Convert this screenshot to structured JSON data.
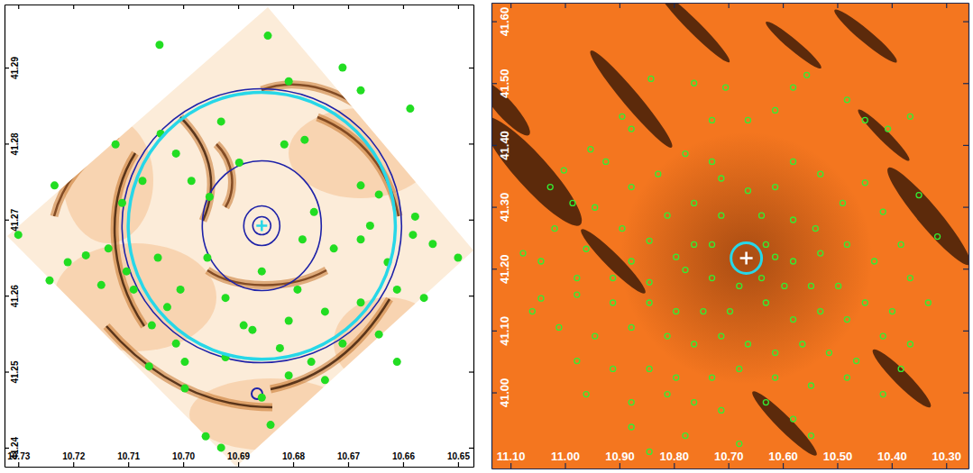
{
  "chart_data": [
    {
      "type": "scatter",
      "marker": "filled-circle",
      "color": "#22dd22",
      "xlim": [
        10.7325,
        10.6472
      ],
      "ylim": [
        41.2375,
        41.2983
      ],
      "xticks": [
        10.73,
        10.72,
        10.71,
        {
          "value": 10.7,
          "label": "10.70"
        },
        10.69,
        10.68,
        10.67,
        10.66,
        10.65
      ],
      "yticks": [
        41.24,
        41.25,
        41.26,
        41.27,
        41.28,
        41.29
      ],
      "x": [
        10.7043,
        10.6846,
        10.6808,
        10.671,
        10.6677,
        10.6587,
        10.7041,
        10.7013,
        10.6931,
        10.6816,
        10.6779,
        10.7123,
        10.7234,
        10.7111,
        10.7074,
        10.6985,
        10.6952,
        10.6898,
        10.6762,
        10.6677,
        10.6644,
        10.6578,
        10.6582,
        10.6546,
        10.73,
        10.7177,
        10.7136,
        10.7103,
        10.7046,
        10.6956,
        10.6857,
        10.6783,
        10.6726,
        10.6677,
        10.6628,
        10.65,
        10.7149,
        10.709,
        10.7005,
        10.6923,
        10.6808,
        10.6874,
        10.6742,
        10.6677,
        10.6611,
        10.6562,
        10.7057,
        10.7013,
        10.6923,
        10.6824,
        10.6767,
        10.671,
        10.6644,
        10.6611,
        10.7062,
        10.6997,
        10.6808,
        10.6742,
        10.6997,
        10.6857,
        10.6841,
        10.6931,
        10.6959,
        10.689,
        10.7029,
        10.6792,
        10.666,
        10.7243,
        10.721
      ],
      "values": [
        41.293,
        41.2942,
        41.2882,
        41.29,
        41.287,
        41.2846,
        41.2813,
        41.2787,
        41.2829,
        41.2799,
        41.2805,
        41.2799,
        41.2745,
        41.2722,
        41.2751,
        41.2751,
        41.273,
        41.2775,
        41.271,
        41.2745,
        41.2733,
        41.2704,
        41.268,
        41.2668,
        41.268,
        41.2653,
        41.2662,
        41.2632,
        41.265,
        41.265,
        41.2632,
        41.2674,
        41.2662,
        41.2674,
        41.2644,
        41.265,
        41.2614,
        41.2608,
        41.2608,
        41.2597,
        41.2567,
        41.2555,
        41.2579,
        41.2591,
        41.2608,
        41.2597,
        41.2561,
        41.2537,
        41.2519,
        41.2531,
        41.2513,
        41.2537,
        41.2549,
        41.2513,
        41.2507,
        41.2513,
        41.2495,
        41.2489,
        41.2478,
        41.2466,
        41.243,
        41.24,
        41.2415,
        41.2561,
        41.2585,
        41.2608,
        41.2692,
        41.262,
        41.2644
      ],
      "circle": {
        "x": 10.6857,
        "y": 41.2692,
        "radius": 0.0243
      }
    },
    {
      "type": "scatter",
      "marker": "open-circle",
      "color": "#33ee33",
      "xlim": [
        11.135,
        10.259
      ],
      "ylim": [
        40.877,
        41.63
      ],
      "xticks": [
        {
          "value": 11.1,
          "label": "11.10"
        },
        {
          "value": 11,
          "label": "11.00"
        },
        {
          "value": 10.9,
          "label": "10.90"
        },
        {
          "value": 10.8,
          "label": "10.80"
        },
        {
          "value": 10.7,
          "label": "10.70"
        },
        {
          "value": 10.6,
          "label": "10.60"
        },
        {
          "value": 10.5,
          "label": "10.50"
        },
        {
          "value": 10.4,
          "label": "10.40"
        },
        {
          "value": 10.3,
          "label": "10.30"
        }
      ],
      "yticks": [
        {
          "value": 41,
          "label": "41.00"
        },
        {
          "value": 41.1,
          "label": "41.10"
        },
        {
          "value": 41.2,
          "label": "41.20"
        },
        {
          "value": 41.3,
          "label": "41.30"
        },
        {
          "value": 41.4,
          "label": "41.40"
        },
        {
          "value": 41.5,
          "label": "41.50"
        },
        {
          "value": 41.6,
          "label": "41.60"
        }
      ],
      "x": [
        10.842,
        10.763,
        10.73,
        10.705,
        10.664,
        10.614,
        10.581,
        10.556,
        10.482,
        10.449,
        10.407,
        10.366,
        10.895,
        10.878,
        10.953,
        10.925,
        11.002,
        11.027,
        10.986,
        10.945,
        10.878,
        10.829,
        10.779,
        10.73,
        10.713,
        10.664,
        10.614,
        10.581,
        10.531,
        10.49,
        10.449,
        10.416,
        10.35,
        10.316,
        10.812,
        10.763,
        10.713,
        10.639,
        10.581,
        10.54,
        10.895,
        10.845,
        11.019,
        10.961,
        10.878,
        10.796,
        10.763,
        10.73,
        10.631,
        10.614,
        10.581,
        10.531,
        10.482,
        10.432,
        10.383,
        10.366,
        11.044,
        10.978,
        10.912,
        10.845,
        10.779,
        10.73,
        10.68,
        10.639,
        10.597,
        10.548,
        10.498,
        10.449,
        10.399,
        10.333,
        11.044,
        10.978,
        10.912,
        10.845,
        10.796,
        10.746,
        10.697,
        10.631,
        10.581,
        10.531,
        10.482,
        10.416,
        10.366,
        11.011,
        10.945,
        10.878,
        10.812,
        10.763,
        10.713,
        10.664,
        10.614,
        10.564,
        10.515,
        10.465,
        10.383,
        10.978,
        10.912,
        10.845,
        10.796,
        10.73,
        10.68,
        10.614,
        10.548,
        10.482,
        10.416,
        10.961,
        10.878,
        10.812,
        10.763,
        10.713,
        10.631,
        10.581,
        10.878,
        10.779,
        10.68,
        10.548,
        10.845,
        11.077,
        11.06
      ],
      "values": [
        41.507,
        41.5,
        41.44,
        41.493,
        41.44,
        41.456,
        41.493,
        41.513,
        41.473,
        41.44,
        41.426,
        41.446,
        41.446,
        41.426,
        41.393,
        41.373,
        41.359,
        41.332,
        41.306,
        41.299,
        41.332,
        41.353,
        41.386,
        41.373,
        41.346,
        41.326,
        41.332,
        41.373,
        41.353,
        41.306,
        41.339,
        41.292,
        41.319,
        41.252,
        41.286,
        41.306,
        41.286,
        41.286,
        41.279,
        41.265,
        41.265,
        41.245,
        41.265,
        41.232,
        41.212,
        41.219,
        41.239,
        41.239,
        41.239,
        41.219,
        41.212,
        41.225,
        41.239,
        41.212,
        41.239,
        41.185,
        41.212,
        41.185,
        41.185,
        41.178,
        41.198,
        41.185,
        41.172,
        41.185,
        41.172,
        41.172,
        41.172,
        41.145,
        41.131,
        41.145,
        41.152,
        41.158,
        41.145,
        41.145,
        41.131,
        41.131,
        41.131,
        41.145,
        41.118,
        41.131,
        41.118,
        41.091,
        41.078,
        41.105,
        41.091,
        41.105,
        41.091,
        41.078,
        41.091,
        41.078,
        41.064,
        41.078,
        41.064,
        41.051,
        41.038,
        41.051,
        41.038,
        41.038,
        41.024,
        41.024,
        41.038,
        41.024,
        41.011,
        41.024,
        40.997,
        40.997,
        40.984,
        40.997,
        40.984,
        40.971,
        40.984,
        40.957,
        40.944,
        40.93,
        40.917,
        40.93,
        40.904,
        41.225,
        41.131
      ],
      "circle": {
        "x": 10.667,
        "y": 41.217,
        "radius": 0.0281
      }
    }
  ]
}
